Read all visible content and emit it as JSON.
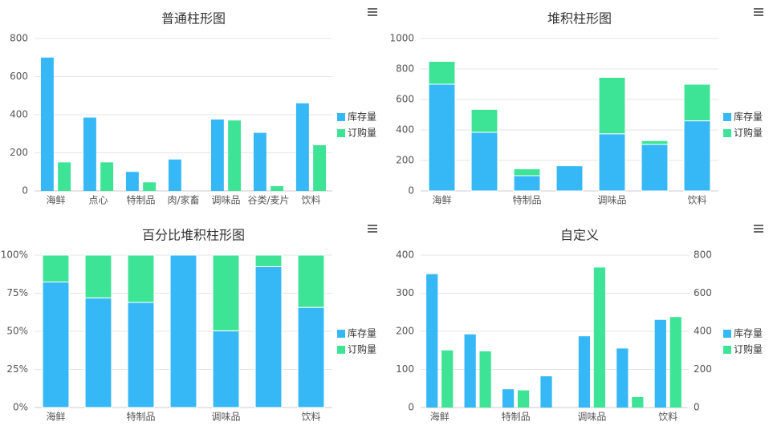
{
  "chart_data": [
    {
      "type": "bar",
      "title": "普通柱形图",
      "categories": [
        "海鲜",
        "点心",
        "特制品",
        "肉/家畜",
        "调味品",
        "谷类/麦片",
        "饮料"
      ],
      "series": [
        {
          "name": "库存量",
          "color": "#36b8f6",
          "values": [
            700,
            385,
            100,
            165,
            375,
            305,
            460
          ]
        },
        {
          "name": "订购量",
          "color": "#3ee495",
          "values": [
            150,
            150,
            45,
            0,
            370,
            25,
            240
          ]
        }
      ],
      "ylim": [
        0,
        800
      ],
      "yticks": [
        0,
        200,
        400,
        600,
        800
      ],
      "grid": true,
      "legend": "right"
    },
    {
      "type": "bar",
      "title": "堆积柱形图",
      "stacking": "normal",
      "categories": [
        "海鲜",
        null,
        "特制品",
        null,
        "调味品",
        null,
        "饮料"
      ],
      "series": [
        {
          "name": "库存量",
          "color": "#36b8f6",
          "values": [
            700,
            385,
            100,
            165,
            375,
            305,
            460
          ]
        },
        {
          "name": "订购量",
          "color": "#3ee495",
          "values": [
            150,
            150,
            45,
            0,
            370,
            25,
            240
          ]
        }
      ],
      "ylim": [
        0,
        1000
      ],
      "yticks": [
        0,
        200,
        400,
        600,
        800,
        1000
      ],
      "grid": true,
      "legend": "right"
    },
    {
      "type": "bar",
      "title": "百分比堆积柱形图",
      "stacking": "percent",
      "categories": [
        "海鲜",
        null,
        "特制品",
        null,
        "调味品",
        null,
        "饮料"
      ],
      "series": [
        {
          "name": "库存量",
          "color": "#36b8f6",
          "values": [
            700,
            385,
            100,
            165,
            375,
            305,
            460
          ]
        },
        {
          "name": "订购量",
          "color": "#3ee495",
          "values": [
            150,
            150,
            45,
            0,
            370,
            25,
            240
          ]
        }
      ],
      "ylim": [
        0,
        100
      ],
      "yticks": [
        {
          "value": 0,
          "label": "0%"
        },
        {
          "value": 25,
          "label": "25%"
        },
        {
          "value": 50,
          "label": "50%"
        },
        {
          "value": 75,
          "label": "75%"
        },
        {
          "value": 100,
          "label": "100%"
        }
      ],
      "grid": true,
      "legend": "right"
    },
    {
      "type": "bar",
      "title": "自定义",
      "categories": [
        "海鲜",
        null,
        "特制品",
        null,
        "调味品",
        null,
        "饮料"
      ],
      "series": [
        {
          "name": "库存量",
          "color": "#36b8f6",
          "values": [
            350,
            192,
            48,
            82,
            187,
            155,
            230
          ]
        },
        {
          "name": "订购量",
          "color": "#3ee495",
          "axis": "y2",
          "values": [
            300,
            295,
            90,
            0,
            735,
            55,
            475
          ]
        }
      ],
      "ylim": [
        0,
        400
      ],
      "yticks": [
        0,
        100,
        200,
        300,
        400
      ],
      "y2lim": [
        0,
        800
      ],
      "y2ticks": [
        0,
        200,
        400,
        600,
        800
      ],
      "grid": true,
      "legend": "right"
    }
  ]
}
